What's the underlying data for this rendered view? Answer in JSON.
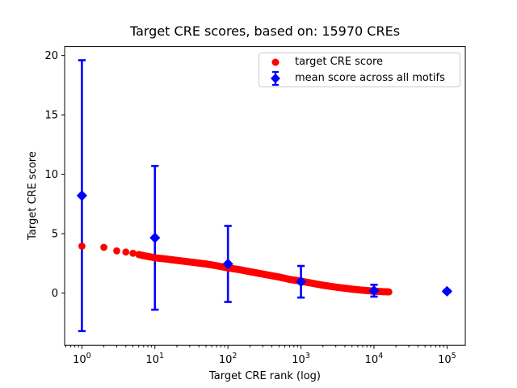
{
  "chart_data": {
    "type": "scatter",
    "title": "Target CRE scores, based on: 15970 CREs",
    "n_cres": 15970,
    "xlabel": "Target CRE rank (log)",
    "ylabel": "Target CRE score",
    "xscale": "log",
    "xlim": [
      0.58,
      178000
    ],
    "ylim": [
      -4.4,
      20.75
    ],
    "x_tick_labels": [
      "10^0",
      "10^1",
      "10^2",
      "10^3",
      "10^4",
      "10^5"
    ],
    "x_tick_exponents": [
      0,
      1,
      2,
      3,
      4,
      5
    ],
    "y_ticks": [
      0,
      5,
      10,
      15,
      20
    ],
    "grid": false,
    "background": "#ffffff",
    "axes_color": "#000000",
    "legend": {
      "position": "upper right",
      "entries": [
        {
          "label": "target CRE score",
          "marker": "circle",
          "color": "#ff0000"
        },
        {
          "label": "mean score across all motifs",
          "marker": "diamond",
          "color": "#0000ff"
        }
      ]
    },
    "series": [
      {
        "name": "target CRE score",
        "plot_type": "scatter",
        "marker": "circle",
        "color": "#ff0000",
        "n_points": 15970,
        "curve_anchors_rank_score": [
          [
            1,
            3.95
          ],
          [
            2,
            3.85
          ],
          [
            3,
            3.55
          ],
          [
            4,
            3.45
          ],
          [
            5,
            3.35
          ],
          [
            7,
            3.15
          ],
          [
            10,
            2.97
          ],
          [
            15,
            2.85
          ],
          [
            20,
            2.75
          ],
          [
            30,
            2.62
          ],
          [
            50,
            2.45
          ],
          [
            70,
            2.3
          ],
          [
            100,
            2.12
          ],
          [
            150,
            1.95
          ],
          [
            200,
            1.8
          ],
          [
            300,
            1.6
          ],
          [
            500,
            1.35
          ],
          [
            700,
            1.15
          ],
          [
            1000,
            1.0
          ],
          [
            1500,
            0.8
          ],
          [
            2000,
            0.66
          ],
          [
            3000,
            0.5
          ],
          [
            5000,
            0.33
          ],
          [
            7000,
            0.24
          ],
          [
            10000,
            0.16
          ],
          [
            13000,
            0.12
          ],
          [
            15970,
            0.1
          ]
        ]
      },
      {
        "name": "mean score across all motifs",
        "plot_type": "errorbar",
        "marker": "diamond",
        "color": "#0000ff",
        "x": [
          1,
          10,
          100,
          1000,
          10000,
          100000
        ],
        "y": [
          8.2,
          4.65,
          2.45,
          0.95,
          0.2,
          0.15
        ],
        "yerr": [
          11.4,
          6.05,
          3.2,
          1.33,
          0.5,
          0.1
        ]
      }
    ]
  }
}
